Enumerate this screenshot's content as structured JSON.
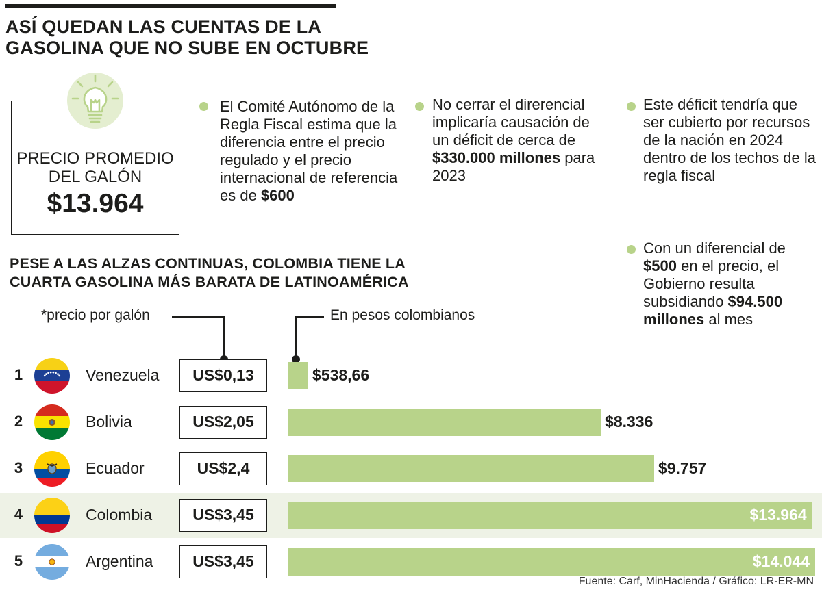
{
  "title": "ASÍ QUEDAN LAS CUENTAS DE LA GASOLINA QUE NO SUBE EN OCTUBRE",
  "price_box": {
    "label_line1": "PRECIO PROMEDIO",
    "label_line2": "DEL GALÓN",
    "value": "$13.964",
    "icon": "lightbulb-icon"
  },
  "notes": [
    {
      "prefix": "El Comité Autónomo de la Regla Fiscal estima que la diferencia entre el precio regulado y el precio internacional de referencia es de ",
      "bold": "$600",
      "suffix": ""
    },
    {
      "prefix": "No cerrar el direrencial implicaría causación de un déficit de cerca de ",
      "bold": "$330.000 millones",
      "suffix": " para 2023"
    },
    {
      "prefix": "Este déficit tendría que ser cubierto por recursos de la nación en 2024 dentro de los techos de la regla fiscal",
      "bold": "",
      "suffix": ""
    },
    {
      "prefix": "Con un diferencial de ",
      "bold": "$500",
      "suffix": " en el precio, el Gobierno resulta subsidiando ",
      "bold2": "$94.500 millones",
      "suffix2": " al mes"
    }
  ],
  "subtitle": "PESE A LAS ALZAS CONTINUAS, COLOMBIA TIENE LA CUARTA GASOLINA MÁS BARATA DE LATINOAMÉRICA",
  "legend": {
    "usd_label": "*precio por galón",
    "cop_label": "En pesos colombianos"
  },
  "colors": {
    "bar": "#b8d38a",
    "highlight": "#eef2e6",
    "dot": "#b8d38a"
  },
  "chart_data": {
    "type": "bar",
    "orientation": "horizontal",
    "title": "PESE A LAS ALZAS CONTINUAS, COLOMBIA TIENE LA CUARTA GASOLINA MÁS BARATA DE LATINOAMÉRICA",
    "unit": "En pesos colombianos",
    "highlight": "Colombia",
    "categories": [
      "Venezuela",
      "Bolivia",
      "Ecuador",
      "Colombia",
      "Argentina"
    ],
    "ranks": [
      "1",
      "2",
      "3",
      "4",
      "5"
    ],
    "usd_labels": [
      "US$0,13",
      "US$2,05",
      "US$2,4",
      "US$3,45",
      "US$3,45"
    ],
    "values": [
      538.66,
      8336,
      9757,
      13964,
      14044
    ],
    "value_labels": [
      "$538,66",
      "$8.336",
      "$9.757",
      "$13.964",
      "$14.044"
    ],
    "flag_icons": [
      "venezuela-flag-icon",
      "bolivia-flag-icon",
      "ecuador-flag-icon",
      "colombia-flag-icon",
      "argentina-flag-icon"
    ],
    "xlim": [
      0,
      14044
    ]
  },
  "source": "Fuente: Carf, MinHacienda / Gráfico: LR-ER-MN"
}
